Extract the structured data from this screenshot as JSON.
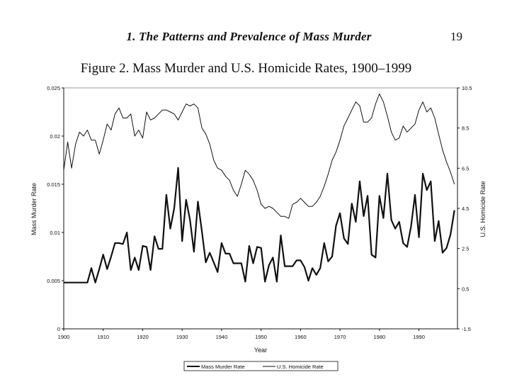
{
  "page": {
    "running_head": "1. The Patterns and Prevalence of Mass Murder",
    "page_number": "19"
  },
  "chart_data": {
    "type": "line",
    "title": "Figure 2. Mass Murder and U.S. Homicide Rates, 1900–1999",
    "xlabel": "Year",
    "ylabel": "Mass Murder Rate",
    "y2label": "U.S. Homicide Rate",
    "x_range": [
      1900,
      1999
    ],
    "x_ticks": [
      "1900",
      "1910",
      "1920",
      "1930",
      "1940",
      "1950",
      "1960",
      "1970",
      "1980",
      "1990"
    ],
    "ylim": [
      0,
      0.025
    ],
    "y_ticks": [
      "0",
      "0.005",
      "0.01",
      "0.015",
      "0.02",
      "0.025"
    ],
    "y2lim": [
      -1.5,
      10.5
    ],
    "y2_ticks": [
      "-1.5",
      "0.5",
      "2.5",
      "4.5",
      "6.5",
      "8.5",
      "10.5"
    ],
    "legend_position": "bottom-center",
    "series": [
      {
        "name": "Mass Murder Rate",
        "axis": "left",
        "style": "thick",
        "values": [
          0.0048,
          0.0048,
          0.0048,
          0.0048,
          0.0048,
          0.0048,
          0.0048,
          0.0063,
          0.0048,
          0.0062,
          0.0077,
          0.0062,
          0.0075,
          0.0089,
          0.0089,
          0.0088,
          0.01,
          0.0061,
          0.0074,
          0.0061,
          0.0086,
          0.0085,
          0.0061,
          0.0096,
          0.0083,
          0.0083,
          0.0139,
          0.0104,
          0.0125,
          0.0167,
          0.0091,
          0.0134,
          0.0113,
          0.008,
          0.0132,
          0.0101,
          0.0069,
          0.0079,
          0.0069,
          0.0059,
          0.0089,
          0.0078,
          0.0078,
          0.0068,
          0.0068,
          0.0068,
          0.0049,
          0.0086,
          0.0068,
          0.0085,
          0.0084,
          0.0049,
          0.0066,
          0.0074,
          0.0049,
          0.0097,
          0.0065,
          0.0065,
          0.0065,
          0.0071,
          0.0071,
          0.0064,
          0.005,
          0.0063,
          0.0056,
          0.0063,
          0.0089,
          0.007,
          0.0075,
          0.0107,
          0.012,
          0.0094,
          0.0088,
          0.013,
          0.0111,
          0.0153,
          0.0117,
          0.0138,
          0.0077,
          0.0074,
          0.0138,
          0.0115,
          0.0161,
          0.0113,
          0.0104,
          0.0111,
          0.0089,
          0.0085,
          0.0106,
          0.0139,
          0.0095,
          0.0161,
          0.0144,
          0.0153,
          0.0091,
          0.0112,
          0.0079,
          0.0084,
          0.0098,
          0.0123
        ]
      },
      {
        "name": "U.S. Homicide Rate",
        "axis": "right",
        "style": "thin",
        "values": [
          6.4,
          7.8,
          6.5,
          7.7,
          8.3,
          8.1,
          8.4,
          7.9,
          7.9,
          7.2,
          7.9,
          8.7,
          8.4,
          9.2,
          9.5,
          9.0,
          9.0,
          9.2,
          8.1,
          8.4,
          8.0,
          9.3,
          8.9,
          9.0,
          9.2,
          9.4,
          9.4,
          9.3,
          9.2,
          8.9,
          9.3,
          9.7,
          9.6,
          9.7,
          9.5,
          8.5,
          8.2,
          7.7,
          6.9,
          6.5,
          6.4,
          6.1,
          5.9,
          5.4,
          5.1,
          5.7,
          6.4,
          6.2,
          5.9,
          5.4,
          4.7,
          4.5,
          4.6,
          4.5,
          4.3,
          4.1,
          4.1,
          4.0,
          4.7,
          4.8,
          5.0,
          4.8,
          4.6,
          4.6,
          4.8,
          5.1,
          5.6,
          6.2,
          6.9,
          7.3,
          7.9,
          8.6,
          9.0,
          9.4,
          9.8,
          9.6,
          8.8,
          8.8,
          9.0,
          9.7,
          10.2,
          9.8,
          9.1,
          8.3,
          7.9,
          8.0,
          8.6,
          8.3,
          8.5,
          8.7,
          9.4,
          9.8,
          9.3,
          9.5,
          9.0,
          8.2,
          7.4,
          6.8,
          6.3,
          5.7
        ]
      }
    ]
  }
}
